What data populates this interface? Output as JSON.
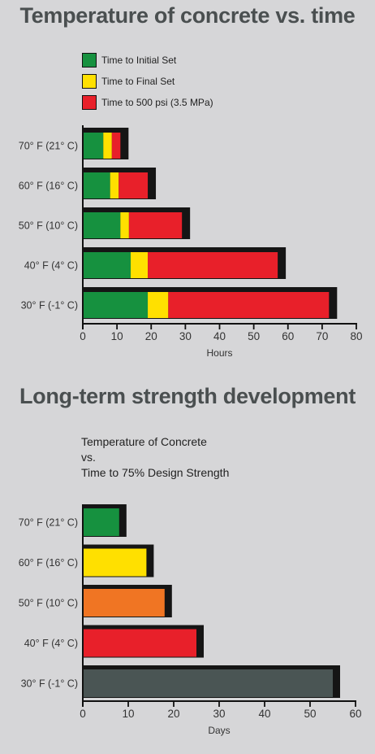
{
  "chart_data": [
    {
      "type": "bar",
      "orientation": "horizontal",
      "stacked": true,
      "title": "Temperature of concrete vs. time",
      "xlabel": "Hours",
      "ylabel": "",
      "xlim": [
        0,
        80
      ],
      "xticks": [
        "0",
        "10",
        "20",
        "30",
        "40",
        "50",
        "60",
        "70",
        "80"
      ],
      "legend_position": "top-left",
      "categories": [
        "70° F (21° C)",
        "60° F (16° C)",
        "50° F (10° C)",
        "40° F (4° C)",
        "30° F (-1° C)"
      ],
      "series": [
        {
          "name": "Time to Initial Set",
          "color": "#16913f",
          "values": [
            6,
            8,
            11,
            14,
            19
          ]
        },
        {
          "name": "Time to Final Set",
          "color": "#ffe000",
          "values": [
            2.5,
            2.5,
            2.5,
            5,
            6
          ]
        },
        {
          "name": "Time to 500 psi (3.5 MPa)",
          "color": "#e8202a",
          "values": [
            2.5,
            8.5,
            15.5,
            38,
            47
          ]
        }
      ]
    },
    {
      "type": "bar",
      "orientation": "horizontal",
      "title": "Long-term strength development",
      "subtitle": [
        "Temperature of Concrete",
        "vs.",
        "Time to 75% Design Strength"
      ],
      "xlabel": "Days",
      "ylabel": "",
      "xlim": [
        0,
        60
      ],
      "xticks": [
        "0",
        "10",
        "20",
        "30",
        "40",
        "50",
        "60"
      ],
      "categories": [
        "70° F (21° C)",
        "60° F (16° C)",
        "50° F (10° C)",
        "40° F (4° C)",
        "30° F (-1° C)"
      ],
      "values": [
        8,
        14,
        18,
        25,
        55
      ],
      "colors": [
        "#16913f",
        "#ffe000",
        "#f07523",
        "#e8202a",
        "#4a5554"
      ]
    }
  ]
}
